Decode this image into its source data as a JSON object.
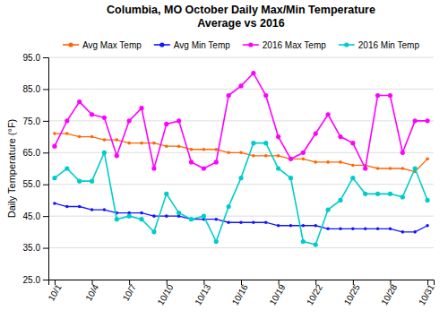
{
  "chart_data": {
    "type": "line",
    "title": "Columbia, MO October Daily Max/Min Temperature\nAverage vs 2016",
    "ylabel": "Daily Temperature (°F)",
    "x": [
      1,
      2,
      3,
      4,
      5,
      6,
      7,
      8,
      9,
      10,
      11,
      12,
      13,
      14,
      15,
      16,
      17,
      18,
      19,
      20,
      21,
      22,
      23,
      24,
      25,
      26,
      27,
      28,
      29,
      30,
      31
    ],
    "xlim": [
      0.5,
      31.5
    ],
    "xticks": [
      {
        "value": 1,
        "label": "10/1"
      },
      {
        "value": 4,
        "label": "10/4"
      },
      {
        "value": 7,
        "label": "10/7"
      },
      {
        "value": 10,
        "label": "10/10"
      },
      {
        "value": 13,
        "label": "10/13"
      },
      {
        "value": 16,
        "label": "10/16"
      },
      {
        "value": 19,
        "label": "10/19"
      },
      {
        "value": 22,
        "label": "10/22"
      },
      {
        "value": 25,
        "label": "10/25"
      },
      {
        "value": 28,
        "label": "10/28"
      },
      {
        "value": 31,
        "label": "10/31"
      }
    ],
    "ylim": [
      25.0,
      95.0
    ],
    "yticks": [
      {
        "value": 25.0,
        "label": "25.0"
      },
      {
        "value": 35.0,
        "label": "35.0"
      },
      {
        "value": 45.0,
        "label": "45.0"
      },
      {
        "value": 55.0,
        "label": "55.0"
      },
      {
        "value": 65.0,
        "label": "65.0"
      },
      {
        "value": 75.0,
        "label": "75.0"
      },
      {
        "value": 85.0,
        "label": "85.0"
      },
      {
        "value": 95.0,
        "label": "95.0"
      }
    ],
    "grid": true,
    "legend": "top",
    "series": [
      {
        "name": "Avg Max Temp",
        "color": "#FF6600",
        "marker": "circle",
        "values": [
          71,
          71,
          70,
          70,
          69,
          69,
          68,
          68,
          68,
          67,
          67,
          66,
          66,
          66,
          65,
          65,
          64,
          64,
          64,
          63,
          63,
          62,
          62,
          62,
          61,
          61,
          60,
          60,
          60,
          59,
          63
        ]
      },
      {
        "name": "Avg Min Temp",
        "color": "#1414FF",
        "marker": "circle",
        "values": [
          49,
          48,
          48,
          47,
          47,
          46,
          46,
          46,
          45,
          45,
          45,
          44,
          44,
          44,
          43,
          43,
          43,
          43,
          42,
          42,
          42,
          42,
          41,
          41,
          41,
          41,
          41,
          41,
          40,
          40,
          42
        ]
      },
      {
        "name": "2016 Max Temp",
        "color": "#FF00FF",
        "marker": "circle",
        "values": [
          67,
          75,
          81,
          77,
          76,
          64,
          75,
          79,
          60,
          74,
          75,
          62,
          60,
          62,
          83,
          86,
          90,
          83,
          70,
          63,
          65,
          71,
          77,
          70,
          68,
          60,
          83,
          83,
          65,
          75,
          75
        ]
      },
      {
        "name": "2016 Min Temp",
        "color": "#00CCCC",
        "marker": "circle",
        "values": [
          57,
          60,
          56,
          56,
          65,
          44,
          45,
          44,
          40,
          52,
          46,
          44,
          45,
          37,
          48,
          57,
          68,
          68,
          60,
          57,
          37,
          36,
          47,
          50,
          57,
          52,
          52,
          52,
          51,
          60,
          50
        ]
      }
    ]
  }
}
